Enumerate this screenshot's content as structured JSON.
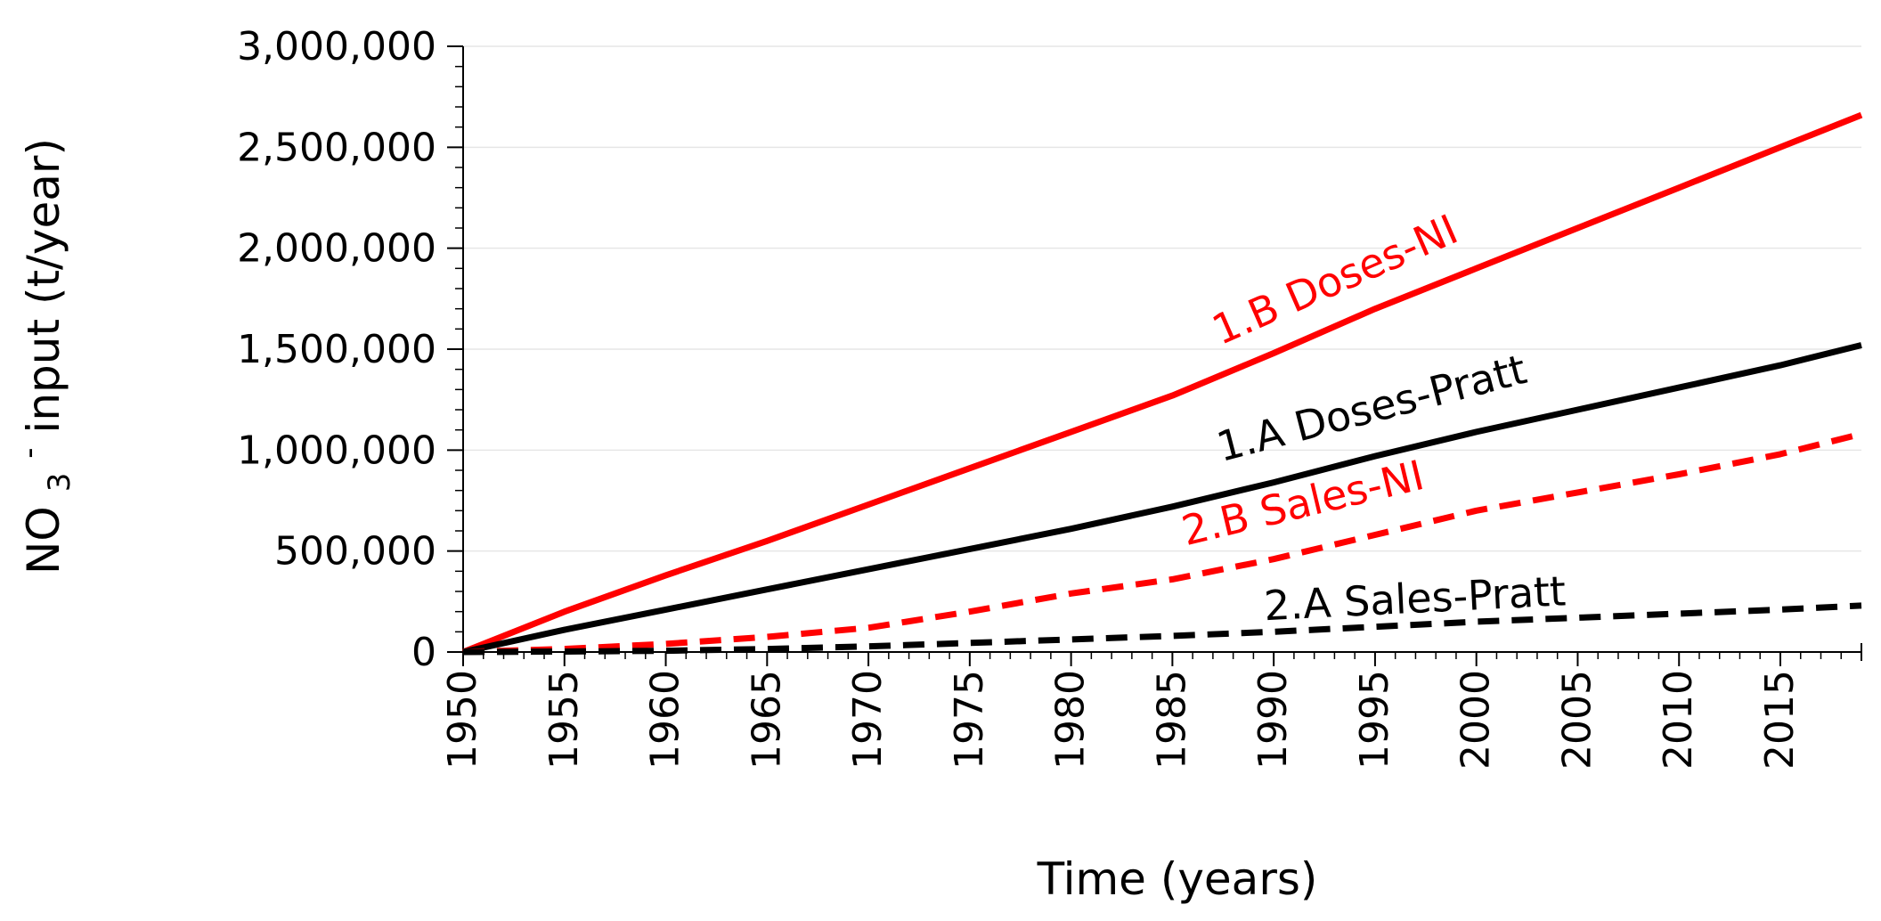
{
  "chart_data": {
    "type": "line",
    "title": "",
    "xlabel": "Time (years)",
    "ylabel": {
      "prefix": "NO",
      "subscript": "3",
      "superscript": "-",
      "suffix": " input (t/year)"
    },
    "xlim": [
      1950,
      2019
    ],
    "ylim": [
      0,
      3000000
    ],
    "x_ticks": [
      1950,
      1955,
      1960,
      1965,
      1970,
      1975,
      1980,
      1985,
      1990,
      1995,
      2000,
      2005,
      2010,
      2015
    ],
    "x_tick_labels": [
      "1950",
      "1955",
      "1960",
      "1965",
      "1970",
      "1975",
      "1980",
      "1985",
      "1990",
      "1995",
      "2000",
      "2005",
      "2010",
      "2015"
    ],
    "y_ticks": [
      0,
      500000,
      1000000,
      1500000,
      2000000,
      2500000,
      3000000
    ],
    "y_tick_labels": [
      "0",
      "500,000",
      "1,000,000",
      "1,500,000",
      "2,000,000",
      "2,500,000",
      "3,000,000"
    ],
    "grid": true,
    "series": [
      {
        "name": "1.B Doses-NI",
        "color": "#ff0000",
        "style": "solid",
        "x": [
          1950,
          1955,
          1960,
          1965,
          1970,
          1975,
          1980,
          1985,
          1990,
          1995,
          2000,
          2005,
          2010,
          2015,
          2019
        ],
        "y": [
          0,
          200000,
          380000,
          550000,
          730000,
          910000,
          1090000,
          1270000,
          1480000,
          1700000,
          1900000,
          2100000,
          2300000,
          2500000,
          2660000
        ]
      },
      {
        "name": "1.A Doses-Pratt",
        "color": "#000000",
        "style": "solid",
        "x": [
          1950,
          1955,
          1960,
          1965,
          1970,
          1975,
          1980,
          1985,
          1990,
          1995,
          2000,
          2005,
          2010,
          2015,
          2019
        ],
        "y": [
          0,
          110000,
          210000,
          310000,
          410000,
          510000,
          610000,
          720000,
          840000,
          970000,
          1090000,
          1200000,
          1310000,
          1420000,
          1520000
        ]
      },
      {
        "name": "2.B Sales-NI",
        "color": "#ff0000",
        "style": "dashed",
        "x": [
          1950,
          1955,
          1960,
          1965,
          1970,
          1975,
          1980,
          1985,
          1990,
          1995,
          2000,
          2005,
          2010,
          2015,
          2019
        ],
        "y": [
          0,
          15000,
          40000,
          75000,
          120000,
          200000,
          290000,
          360000,
          460000,
          580000,
          700000,
          790000,
          880000,
          980000,
          1080000
        ]
      },
      {
        "name": "2.A Sales-Pratt",
        "color": "#000000",
        "style": "dashed",
        "x": [
          1950,
          1955,
          1960,
          1965,
          1970,
          1975,
          1980,
          1985,
          1990,
          1995,
          2000,
          2005,
          2010,
          2015,
          2019
        ],
        "y": [
          0,
          2000,
          6000,
          15000,
          28000,
          45000,
          62000,
          80000,
          100000,
          125000,
          150000,
          170000,
          190000,
          210000,
          230000
        ]
      }
    ],
    "annotations": [
      {
        "text": "1.B Doses-NI",
        "color": "#ff0000",
        "x": 1993.3,
        "y": 1780000,
        "angle_series": 0
      },
      {
        "text": "1.A Doses-Pratt",
        "color": "#000000",
        "x": 1995,
        "y": 1140000,
        "angle_series": 1
      },
      {
        "text": "2.B Sales-NI",
        "color": "#ff0000",
        "x": 1991.6,
        "y": 670000,
        "angle_series": 2
      },
      {
        "text": "2.A Sales-Pratt",
        "color": "#000000",
        "x": 1997,
        "y": 195000,
        "angle_series": 3
      }
    ]
  }
}
